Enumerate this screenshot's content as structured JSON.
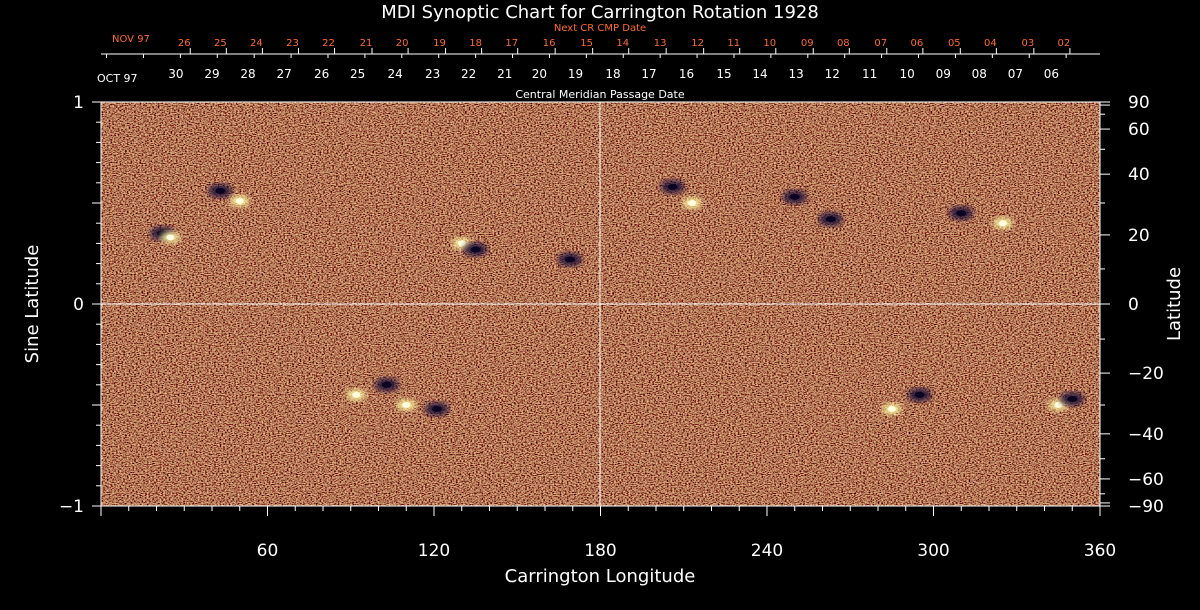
{
  "chart_data": {
    "type": "heatmap",
    "title": "MDI Synoptic Chart for Carrington Rotation 1928",
    "xlabel": "Carrington Longitude",
    "ylabel_left": "Sine Latitude",
    "ylabel_right": "Latitude",
    "xlim": [
      0,
      360
    ],
    "ylim": [
      -1,
      1
    ],
    "x_ticks": [
      60,
      120,
      180,
      240,
      300,
      360
    ],
    "y_ticks_left": [
      {
        "value": 1,
        "label": "1"
      },
      {
        "value": 0,
        "label": "0"
      },
      {
        "value": -1,
        "label": "−1"
      }
    ],
    "y_ticks_right": [
      {
        "lat": 90,
        "label": "90"
      },
      {
        "lat": 60,
        "label": "60"
      },
      {
        "lat": 40,
        "label": "40"
      },
      {
        "lat": 20,
        "label": "20"
      },
      {
        "lat": 0,
        "label": "0"
      },
      {
        "lat": -20,
        "label": "−20"
      },
      {
        "lat": -40,
        "label": "−40"
      },
      {
        "lat": -60,
        "label": "−60"
      },
      {
        "lat": -90,
        "label": "−90"
      }
    ],
    "cmp_label": "Central Meridian Passage Date",
    "cmp_month_label": "OCT 97",
    "cmp_dates": [
      {
        "lon": 27,
        "label": "30"
      },
      {
        "lon": 40,
        "label": "29"
      },
      {
        "lon": 53,
        "label": "28"
      },
      {
        "lon": 66,
        "label": "27"
      },
      {
        "lon": 79.5,
        "label": "26"
      },
      {
        "lon": 92.5,
        "label": "25"
      },
      {
        "lon": 106,
        "label": "24"
      },
      {
        "lon": 119.5,
        "label": "23"
      },
      {
        "lon": 132.5,
        "label": "22"
      },
      {
        "lon": 145.5,
        "label": "21"
      },
      {
        "lon": 158,
        "label": "20"
      },
      {
        "lon": 171,
        "label": "19"
      },
      {
        "lon": 184.5,
        "label": "18"
      },
      {
        "lon": 197.5,
        "label": "17"
      },
      {
        "lon": 211,
        "label": "16"
      },
      {
        "lon": 224.5,
        "label": "15"
      },
      {
        "lon": 237.5,
        "label": "14"
      },
      {
        "lon": 250.5,
        "label": "13"
      },
      {
        "lon": 263.5,
        "label": "12"
      },
      {
        "lon": 277,
        "label": "11"
      },
      {
        "lon": 290.5,
        "label": "10"
      },
      {
        "lon": 303.5,
        "label": "09"
      },
      {
        "lon": 316.5,
        "label": "08"
      },
      {
        "lon": 329.5,
        "label": "07"
      },
      {
        "lon": 342.5,
        "label": "06"
      }
    ],
    "next_cr_label": "Next CR CMP Date",
    "next_cr_month_label": "NOV 97",
    "next_cr_dates": [
      {
        "lon": 30,
        "label": "26"
      },
      {
        "lon": 43,
        "label": "25"
      },
      {
        "lon": 56,
        "label": "24"
      },
      {
        "lon": 69,
        "label": "23"
      },
      {
        "lon": 82,
        "label": "22"
      },
      {
        "lon": 95.5,
        "label": "21"
      },
      {
        "lon": 108.5,
        "label": "20"
      },
      {
        "lon": 122,
        "label": "19"
      },
      {
        "lon": 135,
        "label": "18"
      },
      {
        "lon": 148,
        "label": "17"
      },
      {
        "lon": 161.5,
        "label": "16"
      },
      {
        "lon": 175,
        "label": "15"
      },
      {
        "lon": 188,
        "label": "14"
      },
      {
        "lon": 201.5,
        "label": "13"
      },
      {
        "lon": 215,
        "label": "12"
      },
      {
        "lon": 228,
        "label": "11"
      },
      {
        "lon": 241,
        "label": "10"
      },
      {
        "lon": 254.5,
        "label": "09"
      },
      {
        "lon": 267.5,
        "label": "08"
      },
      {
        "lon": 281,
        "label": "07"
      },
      {
        "lon": 294,
        "label": "06"
      },
      {
        "lon": 307.5,
        "label": "05"
      },
      {
        "lon": 320.5,
        "label": "04"
      },
      {
        "lon": 334,
        "label": "03"
      },
      {
        "lon": 347,
        "label": "02"
      }
    ],
    "colormap": {
      "background": "#e8541a",
      "dark": "#1a0a3a",
      "bright": "#fff4a0"
    },
    "active_regions": [
      {
        "lon": 22,
        "sinlat": 0.35,
        "polarity": "negative"
      },
      {
        "lon": 25,
        "sinlat": 0.33,
        "polarity": "positive"
      },
      {
        "lon": 43,
        "sinlat": 0.56,
        "polarity": "negative"
      },
      {
        "lon": 50,
        "sinlat": 0.51,
        "polarity": "positive"
      },
      {
        "lon": 130,
        "sinlat": 0.3,
        "polarity": "positive"
      },
      {
        "lon": 135,
        "sinlat": 0.27,
        "polarity": "negative"
      },
      {
        "lon": 169,
        "sinlat": 0.22,
        "polarity": "negative"
      },
      {
        "lon": 206,
        "sinlat": 0.58,
        "polarity": "negative"
      },
      {
        "lon": 213,
        "sinlat": 0.5,
        "polarity": "positive"
      },
      {
        "lon": 250,
        "sinlat": 0.53,
        "polarity": "negative"
      },
      {
        "lon": 263,
        "sinlat": 0.42,
        "polarity": "negative"
      },
      {
        "lon": 310,
        "sinlat": 0.45,
        "polarity": "negative"
      },
      {
        "lon": 325,
        "sinlat": 0.4,
        "polarity": "positive"
      },
      {
        "lon": 92,
        "sinlat": -0.45,
        "polarity": "positive"
      },
      {
        "lon": 103,
        "sinlat": -0.4,
        "polarity": "negative"
      },
      {
        "lon": 110,
        "sinlat": -0.5,
        "polarity": "positive"
      },
      {
        "lon": 121,
        "sinlat": -0.52,
        "polarity": "negative"
      },
      {
        "lon": 285,
        "sinlat": -0.52,
        "polarity": "positive"
      },
      {
        "lon": 295,
        "sinlat": -0.45,
        "polarity": "negative"
      },
      {
        "lon": 345,
        "sinlat": -0.5,
        "polarity": "positive"
      },
      {
        "lon": 350,
        "sinlat": -0.47,
        "polarity": "negative"
      }
    ],
    "grid": false
  }
}
